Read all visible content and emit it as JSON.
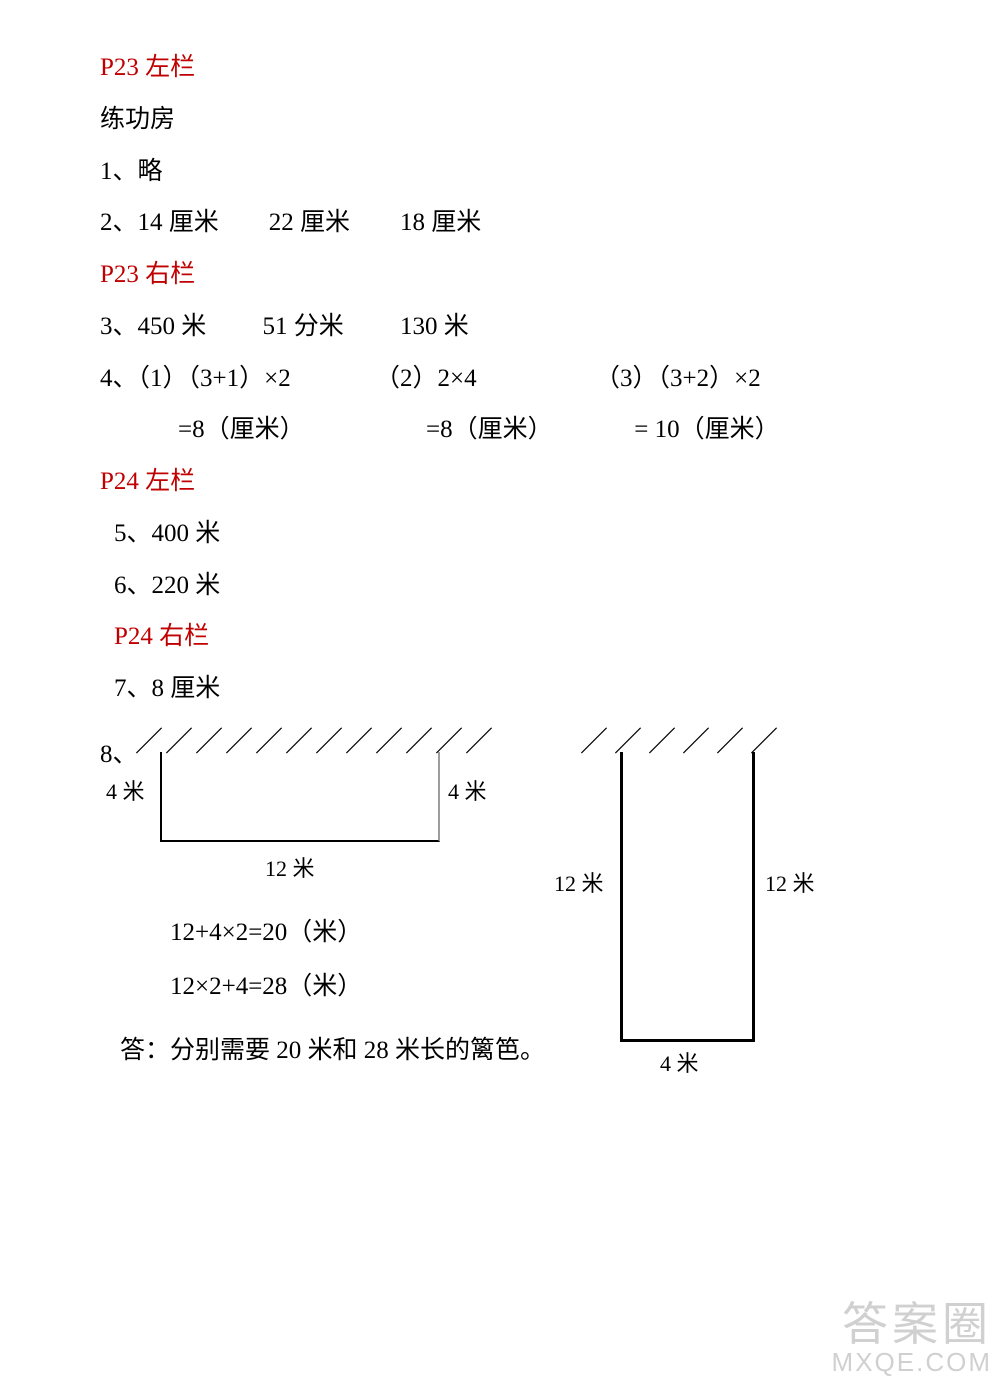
{
  "sections": {
    "p23L": "P23 左栏",
    "p23R": "P23 右栏",
    "p24L": "P24 左栏",
    "p24R": "P24 右栏"
  },
  "lines": {
    "liangonfang": "练功房",
    "q1": "1、略",
    "q2": "2、14 厘米　　22 厘米　　18 厘米",
    "q3": "3、450 米　　 51 分米　　 130 米",
    "q4a1": "4、（1）（3+1）×2",
    "q4a2": "（2）2×4",
    "q4a3": "（3）（3+2）×2",
    "q4b1": "=8（厘米）",
    "q4b2": "=8（厘米）",
    "q4b3": "= 10（厘米）",
    "q5": "5、400 米",
    "q6": "6、220 米",
    "q7": "7、8 厘米",
    "q8prefix": "8、",
    "eq1": "12+4×2=20（米）",
    "eq2": "12×2+4=28（米）",
    "answer": "答：分别需要 20 米和 28 米长的篱笆。"
  },
  "diagram": {
    "left": {
      "hatch": "／／／／／／／／／／／／",
      "label4": "4 米",
      "label12": "12 米"
    },
    "right": {
      "hatch": "／／／／／／",
      "label12": "12 米",
      "label4": "4 米"
    }
  },
  "watermark": {
    "line1": "答案圈",
    "line2": "MXQE.COM"
  },
  "colors": {
    "red": "#c00000",
    "black": "#000000",
    "grayBorder": "#9d9d9d",
    "wm": "rgba(120,120,120,0.35)"
  }
}
